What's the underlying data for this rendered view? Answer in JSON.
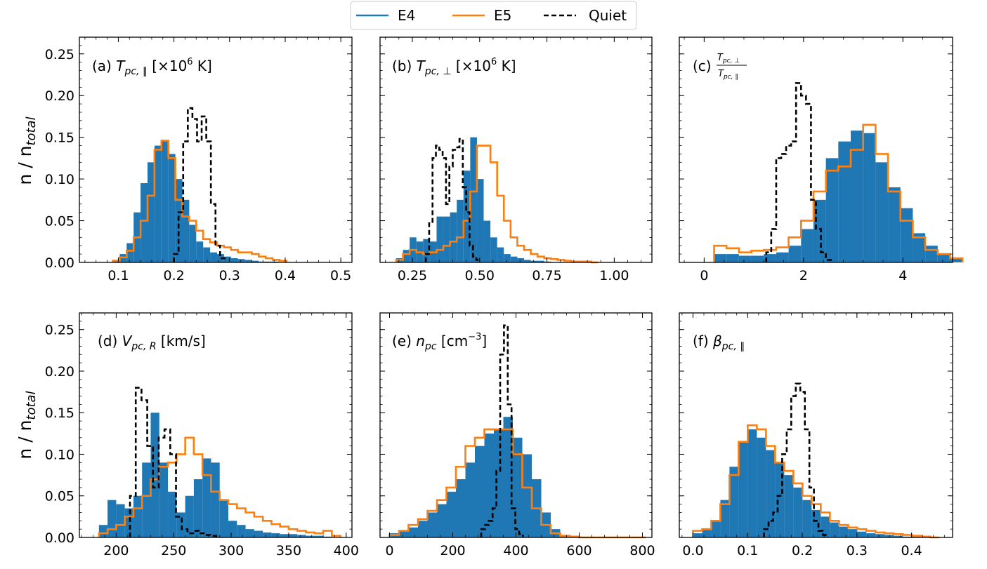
{
  "figure": {
    "legend": [
      {
        "label": "E4",
        "color": "#1f77b4",
        "style": "solid"
      },
      {
        "label": "E5",
        "color": "#ff7f0e",
        "style": "solid"
      },
      {
        "label": "Quiet",
        "color": "#000000",
        "style": "dashed"
      }
    ],
    "ylabel": {
      "main": "n / n",
      "sub": "total"
    },
    "colors": {
      "e4": "#1f77b4",
      "e5": "#ff7f0e",
      "quiet": "#000000"
    }
  },
  "chart_data": [
    {
      "id": "a",
      "type": "histogram",
      "title": {
        "prefix": "(a) ",
        "var": "T",
        "sub": "pc, ∥",
        "suffix": "  [×10",
        "sup": "6",
        "end": " K]"
      },
      "xlim": [
        0.03,
        0.52
      ],
      "ylim": [
        0,
        0.27
      ],
      "xticks": [
        0.1,
        0.2,
        0.3,
        0.4,
        0.5
      ],
      "xtick_labels": [
        "0.1",
        "0.2",
        "0.3",
        "0.4",
        "0.5"
      ],
      "yticks": [
        0,
        0.05,
        0.1,
        0.15,
        0.2,
        0.25
      ],
      "ytick_labels": [
        "0.00",
        "0.05",
        "0.10",
        "0.15",
        "0.20",
        "0.25"
      ],
      "bin_start": 0.09,
      "bin_width": 0.0125,
      "e4": [
        0.003,
        0.01,
        0.023,
        0.06,
        0.095,
        0.12,
        0.14,
        0.146,
        0.13,
        0.1,
        0.075,
        0.045,
        0.025,
        0.018,
        0.012,
        0.01,
        0.007,
        0.005,
        0.004,
        0.003,
        0.002,
        0.001,
        0.001,
        0.001,
        0.0
      ],
      "e5": [
        0.002,
        0.006,
        0.014,
        0.03,
        0.05,
        0.08,
        0.135,
        0.146,
        0.125,
        0.075,
        0.055,
        0.05,
        0.038,
        0.028,
        0.024,
        0.02,
        0.018,
        0.015,
        0.012,
        0.012,
        0.01,
        0.007,
        0.005,
        0.003,
        0.002
      ],
      "quiet_start": 0.2,
      "quiet_width": 0.0083,
      "quiet": [
        0.01,
        0.06,
        0.145,
        0.185,
        0.172,
        0.145,
        0.175,
        0.145,
        0.07,
        0.02,
        0.005
      ]
    },
    {
      "id": "b",
      "type": "histogram",
      "title": {
        "prefix": "(b) ",
        "var": "T",
        "sub": "pc, ⊥",
        "suffix": "  [×10",
        "sup": "6",
        "end": " K]"
      },
      "xlim": [
        0.13,
        1.14
      ],
      "ylim": [
        0,
        0.27
      ],
      "xticks": [
        0.25,
        0.5,
        0.75,
        1.0
      ],
      "xtick_labels": [
        "0.25",
        "0.50",
        "0.75",
        "1.00"
      ],
      "yticks": [
        0,
        0.05,
        0.1,
        0.15,
        0.2,
        0.25
      ],
      "ytick_labels": [
        "",
        "",
        "",
        "",
        "",
        ""
      ],
      "bin_start": 0.19,
      "bin_width": 0.025,
      "e4": [
        0.005,
        0.015,
        0.03,
        0.025,
        0.028,
        0.025,
        0.055,
        0.055,
        0.06,
        0.075,
        0.11,
        0.15,
        0.1,
        0.05,
        0.03,
        0.018,
        0.01,
        0.007,
        0.005,
        0.003,
        0.002,
        0.002,
        0.001,
        0.0,
        0.0,
        0.0,
        0.0,
        0.0,
        0.0,
        0.0
      ],
      "e5": [
        0.003,
        0.01,
        0.015,
        0.012,
        0.01,
        0.012,
        0.015,
        0.02,
        0.025,
        0.03,
        0.05,
        0.085,
        0.14,
        0.14,
        0.12,
        0.08,
        0.05,
        0.03,
        0.02,
        0.015,
        0.01,
        0.007,
        0.005,
        0.004,
        0.003,
        0.002,
        0.001,
        0.001,
        0.001,
        0.0
      ],
      "quiet_start": 0.3,
      "quiet_width": 0.0125,
      "quiet": [
        0.01,
        0.047,
        0.125,
        0.14,
        0.135,
        0.125,
        0.07,
        0.115,
        0.135,
        0.138,
        0.148,
        0.09,
        0.06,
        0.02,
        0.007,
        0.003
      ]
    },
    {
      "id": "c",
      "type": "histogram",
      "title": {
        "prefix": "(c) ",
        "frac_num": "T",
        "frac_num_sub": "pc, ⊥",
        "frac_den": "T",
        "frac_den_sub": "pc, ∥"
      },
      "xlim": [
        -0.5,
        5.0
      ],
      "ylim": [
        0,
        0.27
      ],
      "xticks": [
        0,
        2,
        4
      ],
      "xtick_labels": [
        "0",
        "2",
        "4"
      ],
      "yticks": [
        0,
        0.05,
        0.1,
        0.15,
        0.2,
        0.25
      ],
      "ytick_labels": [
        "",
        "",
        "",
        "",
        "",
        ""
      ],
      "bin_start": 0.2,
      "bin_width": 0.25,
      "e4": [
        0.01,
        0.01,
        0.008,
        0.008,
        0.01,
        0.012,
        0.02,
        0.04,
        0.075,
        0.125,
        0.145,
        0.158,
        0.155,
        0.12,
        0.09,
        0.065,
        0.035,
        0.02,
        0.01,
        0.005
      ],
      "e5": [
        0.02,
        0.017,
        0.012,
        0.014,
        0.015,
        0.018,
        0.03,
        0.05,
        0.085,
        0.11,
        0.115,
        0.135,
        0.165,
        0.13,
        0.085,
        0.05,
        0.03,
        0.015,
        0.01,
        0.005
      ],
      "quiet_start": 1.25,
      "quiet_width": 0.1,
      "quiet": [
        0.012,
        0.04,
        0.125,
        0.13,
        0.14,
        0.145,
        0.215,
        0.2,
        0.19,
        0.075,
        0.04,
        0.012,
        0.003
      ]
    },
    {
      "id": "d",
      "type": "histogram",
      "title": {
        "prefix": "(d) ",
        "var": "V",
        "sub": "pc, R",
        "suffix": " [km/s]"
      },
      "xlim": [
        168,
        405
      ],
      "ylim": [
        0,
        0.27
      ],
      "xticks": [
        200,
        250,
        300,
        350,
        400
      ],
      "xtick_labels": [
        "200",
        "250",
        "300",
        "350",
        "400"
      ],
      "yticks": [
        0,
        0.05,
        0.1,
        0.15,
        0.2,
        0.25
      ],
      "ytick_labels": [
        "0.00",
        "0.05",
        "0.10",
        "0.15",
        "0.20",
        "0.25"
      ],
      "bin_start": 185,
      "bin_width": 7.5,
      "e4": [
        0.015,
        0.045,
        0.04,
        0.035,
        0.05,
        0.09,
        0.15,
        0.09,
        0.055,
        0.03,
        0.05,
        0.07,
        0.095,
        0.09,
        0.045,
        0.02,
        0.015,
        0.01,
        0.008,
        0.006,
        0.005,
        0.004,
        0.004,
        0.003,
        0.002,
        0.002,
        0.001,
        0.0
      ],
      "e5": [
        0.005,
        0.01,
        0.015,
        0.025,
        0.035,
        0.05,
        0.07,
        0.085,
        0.09,
        0.1,
        0.12,
        0.1,
        0.075,
        0.055,
        0.045,
        0.04,
        0.035,
        0.03,
        0.025,
        0.02,
        0.016,
        0.013,
        0.01,
        0.008,
        0.006,
        0.005,
        0.008,
        0.002
      ],
      "quiet_start": 212,
      "quiet_width": 5,
      "quiet": [
        0.05,
        0.18,
        0.165,
        0.11,
        0.06,
        0.12,
        0.13,
        0.1,
        0.025,
        0.01,
        0.005,
        0.008,
        0.005,
        0.003,
        0.002
      ]
    },
    {
      "id": "e",
      "type": "histogram",
      "title": {
        "prefix": "(e) ",
        "var": "n",
        "sub": "pc",
        "suffix": " [cm",
        "sup": "−3",
        "end": "]"
      },
      "xlim": [
        -30,
        830
      ],
      "ylim": [
        0,
        0.27
      ],
      "xticks": [
        0,
        200,
        400,
        600,
        800
      ],
      "xtick_labels": [
        "0",
        "200",
        "400",
        "600",
        "800"
      ],
      "yticks": [
        0,
        0.05,
        0.1,
        0.15,
        0.2,
        0.25
      ],
      "ytick_labels": [
        "",
        "",
        "",
        "",
        "",
        ""
      ],
      "bin_start": 0,
      "bin_width": 30,
      "e4": [
        0.005,
        0.008,
        0.012,
        0.02,
        0.03,
        0.04,
        0.055,
        0.07,
        0.09,
        0.11,
        0.125,
        0.13,
        0.145,
        0.12,
        0.1,
        0.07,
        0.03,
        0.01,
        0.003,
        0.001,
        0.0,
        0.0,
        0.0,
        0.0,
        0.0,
        0.0,
        0.0
      ],
      "e5": [
        0.003,
        0.008,
        0.015,
        0.022,
        0.032,
        0.045,
        0.06,
        0.085,
        0.11,
        0.12,
        0.13,
        0.13,
        0.13,
        0.1,
        0.06,
        0.035,
        0.015,
        0.005,
        0.002,
        0.001,
        0.0,
        0.0,
        0.0,
        0.0,
        0.0,
        0.0,
        0.0
      ],
      "quiet_start": 290,
      "quiet_width": 12,
      "quiet": [
        0.01,
        0.015,
        0.02,
        0.035,
        0.08,
        0.22,
        0.255,
        0.16,
        0.035,
        0.01,
        0.004
      ]
    },
    {
      "id": "f",
      "type": "histogram",
      "title": {
        "prefix": "(f) ",
        "var": "β",
        "sub": "pc, ∥"
      },
      "xlim": [
        -0.025,
        0.475
      ],
      "ylim": [
        0,
        0.27
      ],
      "xticks": [
        0.0,
        0.1,
        0.2,
        0.3,
        0.4
      ],
      "xtick_labels": [
        "0.0",
        "0.1",
        "0.2",
        "0.3",
        "0.4"
      ],
      "yticks": [
        0,
        0.05,
        0.1,
        0.15,
        0.2,
        0.25
      ],
      "ytick_labels": [
        "",
        "",
        "",
        "",
        "",
        ""
      ],
      "bin_start": 0.0,
      "bin_width": 0.0167,
      "e4": [
        0.005,
        0.01,
        0.02,
        0.045,
        0.085,
        0.115,
        0.13,
        0.12,
        0.105,
        0.09,
        0.075,
        0.06,
        0.045,
        0.033,
        0.025,
        0.018,
        0.013,
        0.01,
        0.007,
        0.005,
        0.004,
        0.003,
        0.002,
        0.001,
        0.001,
        0.0,
        0.0
      ],
      "e5": [
        0.008,
        0.01,
        0.02,
        0.04,
        0.075,
        0.115,
        0.135,
        0.13,
        0.11,
        0.09,
        0.08,
        0.065,
        0.05,
        0.04,
        0.03,
        0.02,
        0.015,
        0.012,
        0.01,
        0.008,
        0.006,
        0.005,
        0.004,
        0.003,
        0.002,
        0.001,
        0.0
      ],
      "quiet_start": 0.13,
      "quiet_width": 0.0083,
      "quiet": [
        0.01,
        0.02,
        0.03,
        0.05,
        0.1,
        0.13,
        0.17,
        0.185,
        0.175,
        0.13,
        0.06,
        0.02,
        0.008,
        0.003
      ]
    }
  ]
}
